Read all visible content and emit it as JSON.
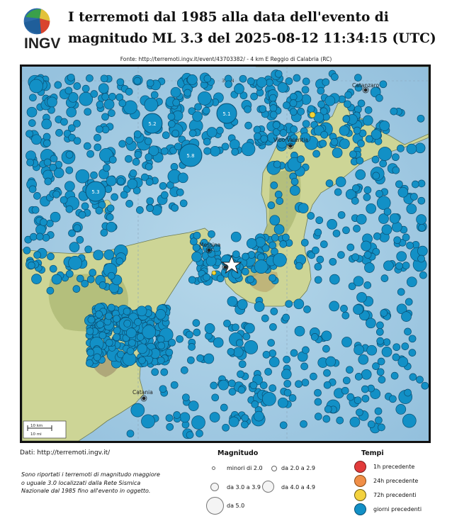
{
  "header": {
    "logo_text": "INGV",
    "title_line1": "I terremoti dal 1985 alla data dell'evento di",
    "title_line2": "magnitudo ML 3.3 del 2025-08-12 11:34:15 (UTC)",
    "source": "Fonte: http://terremoti.ingv.it/event/43703382/ - 4 km E Reggio di Calabria (RC)"
  },
  "map": {
    "places": [
      "Catanzaro",
      "Vibo Valentia",
      "Messina",
      "Catania"
    ],
    "grid_labels": [
      "39°N"
    ],
    "magnitude_labels": [
      "5.2",
      "5.1",
      "5.8",
      "5.3"
    ],
    "scale": {
      "km": "10 km",
      "mi": "10 mi"
    },
    "colors": {
      "sea": "#a7cde4",
      "land": "#cfd79a",
      "event": "#1290c6",
      "event_edge": "#0b4f73",
      "yellow": "#f2d336"
    }
  },
  "footer": {
    "data_credit": "Dati: http://terremoti.ingv.it/",
    "note": "Sono riportati i terremoti di magnitudo maggiore o uguale 3.0 localizzati dalla Rete Sismica Nazionale dal 1985 fino all'evento in oggetto."
  },
  "legend": {
    "magnitude_title": "Magnitudo",
    "magnitude": [
      "minori di 2.0",
      "da 2.0 a 2.9",
      "da 3.0 a 3.9",
      "da 4.0 a 4.9",
      "da 5.0"
    ],
    "time_title": "Tempi",
    "time": [
      {
        "label": "1h precedente",
        "color": "#e23b3b"
      },
      {
        "label": "24h precedente",
        "color": "#f08f48"
      },
      {
        "label": "72h precedenti",
        "color": "#f3d23e"
      },
      {
        "label": "giorni precedenti",
        "color": "#1290c6"
      }
    ]
  }
}
